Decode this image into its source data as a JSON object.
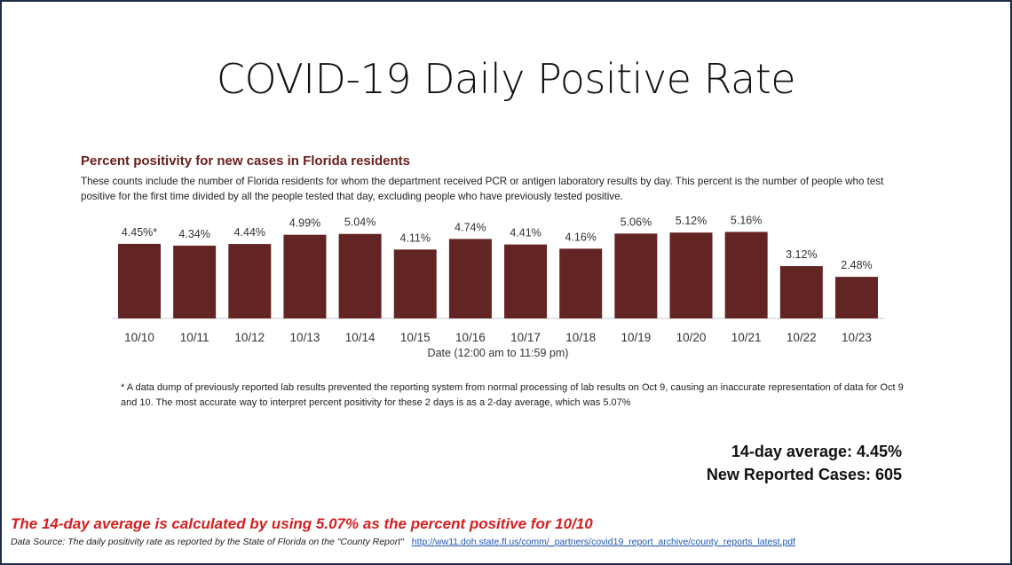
{
  "slide_title": "COVID-19 Daily Positive Rate",
  "chart_data": {
    "type": "bar",
    "title": "Percent positivity for new cases in Florida residents",
    "subtitle": "These counts include the number of Florida residents for whom the department received PCR or antigen laboratory results by day. This percent is the number of people who test positive for the first time divided by all the people tested that day, excluding people who have previously tested positive.",
    "xlabel": "Date (12:00 am to 11:59 pm)",
    "ylabel": "",
    "categories": [
      "10/10",
      "10/11",
      "10/12",
      "10/13",
      "10/14",
      "10/15",
      "10/16",
      "10/17",
      "10/18",
      "10/19",
      "10/20",
      "10/21",
      "10/22",
      "10/23"
    ],
    "values": [
      4.45,
      4.34,
      4.44,
      4.99,
      5.04,
      4.11,
      4.74,
      4.41,
      4.16,
      5.06,
      5.12,
      5.16,
      3.12,
      2.48
    ],
    "data_labels": [
      "4.45%*",
      "4.34%",
      "4.44%",
      "4.99%",
      "5.04%",
      "4.11%",
      "4.74%",
      "4.41%",
      "4.16%",
      "5.06%",
      "5.12%",
      "5.16%",
      "3.12%",
      "2.48%"
    ],
    "ylim": [
      0,
      5.5
    ],
    "grid": false,
    "bar_color": "#632424"
  },
  "footnote": "* A data dump of previously reported lab results prevented the reporting system from normal processing of lab results on Oct 9, causing an inaccurate representation of data for Oct 9 and 10. The most accurate way to interpret percent positivity for these 2 days is as a 2-day average, which was 5.07%",
  "stats": {
    "avg": "14-day average: 4.45%",
    "cases": "New Reported Cases: 605"
  },
  "note": "The 14-day average is calculated by using 5.07% as the percent positive for 10/10",
  "source": {
    "text": "Data Source: The daily positivity rate as reported by the State of Florida on the \"County Report\"",
    "link": "http://ww11.doh.state.fl.us/comm/_partners/covid19_report_archive/county_reports_latest.pdf"
  }
}
